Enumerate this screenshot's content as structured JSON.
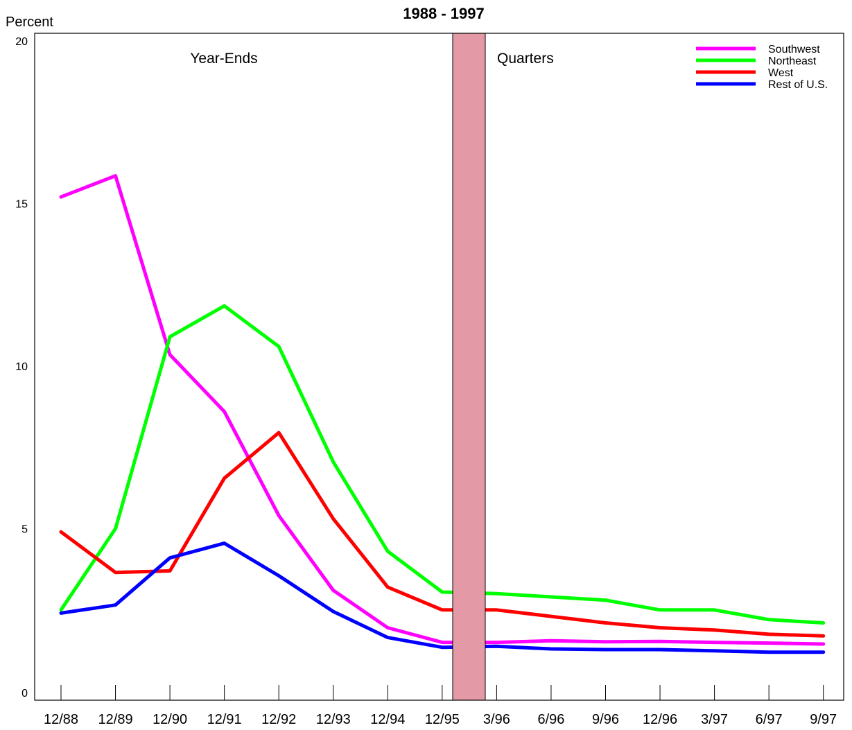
{
  "chart_data": {
    "type": "line",
    "title": "1988 - 1997",
    "ylabel": "Percent",
    "xlabel": "",
    "ylim": [
      0,
      20
    ],
    "y_ticks": [
      "0",
      "5",
      "10",
      "15",
      "20"
    ],
    "categories": [
      "12/88",
      "12/89",
      "12/90",
      "12/91",
      "12/92",
      "12/93",
      "12/94",
      "12/95",
      "3/96",
      "6/96",
      "9/96",
      "12/96",
      "3/97",
      "6/97",
      "9/97"
    ],
    "sections": {
      "left": "Year-Ends",
      "right": "Quarters"
    },
    "legend_position": "top-right",
    "grid": false,
    "divider_color": "#e49aa6",
    "series": [
      {
        "name": "Southwest",
        "color": "#ff00ff",
        "values": [
          15.2,
          15.85,
          10.35,
          8.6,
          5.4,
          3.1,
          1.95,
          1.5,
          1.5,
          1.55,
          1.52,
          1.53,
          1.5,
          1.48,
          1.45
        ]
      },
      {
        "name": "Northeast",
        "color": "#00ff00",
        "values": [
          2.5,
          5.0,
          10.9,
          11.85,
          10.6,
          7.05,
          4.3,
          3.05,
          3.0,
          2.9,
          2.8,
          2.5,
          2.5,
          2.2,
          2.1
        ]
      },
      {
        "name": "West",
        "color": "#ff0000",
        "values": [
          4.9,
          3.65,
          3.7,
          6.55,
          7.95,
          5.3,
          3.2,
          2.5,
          2.5,
          2.3,
          2.1,
          1.95,
          1.88,
          1.75,
          1.7
        ]
      },
      {
        "name": "Rest of U.S.",
        "color": "#0000ff",
        "values": [
          2.4,
          2.65,
          4.1,
          4.55,
          3.55,
          2.45,
          1.65,
          1.35,
          1.38,
          1.3,
          1.28,
          1.28,
          1.24,
          1.2,
          1.2
        ]
      }
    ]
  }
}
